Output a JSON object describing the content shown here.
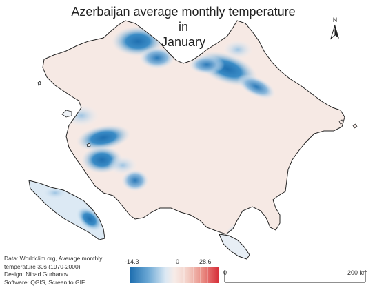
{
  "title_line1": "Azerbaijan average monthly temperature in",
  "title_line2": "January",
  "north_arrow_label": "N",
  "credits": {
    "line1": "Data: Worldclim.org, Average monthly",
    "line2": "temperature 30s (1970-2000)",
    "line3": "Design: Nihad Gurbanov",
    "line4": "Software: QGIS, Screen to GIF"
  },
  "legend": {
    "min": "-14.3",
    "mid": "0",
    "max": "28.6",
    "colors": {
      "cold": "#1f6fb0",
      "neutral": "#f7ece8",
      "warm": "#d7303a"
    }
  },
  "scale_bar": {
    "start": "0",
    "end": "200 km"
  },
  "colors": {
    "land": "#f6e9e4",
    "outline": "#222222"
  }
}
